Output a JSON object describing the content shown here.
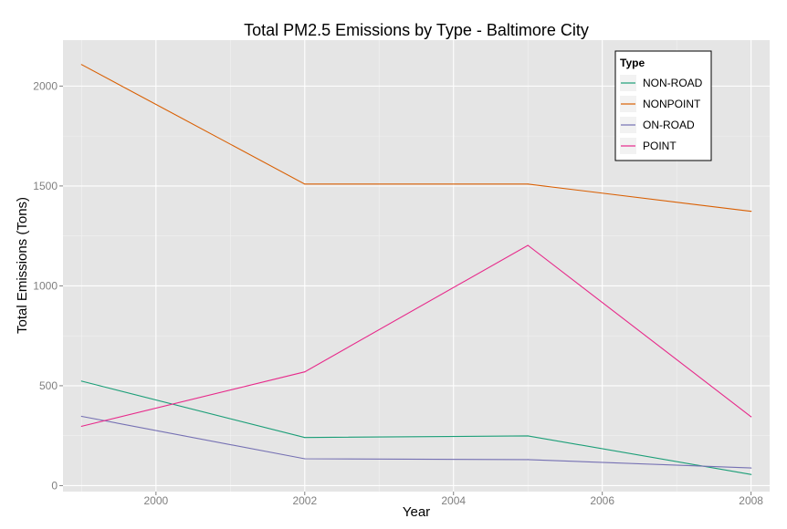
{
  "chart_data": {
    "type": "line",
    "title": "Total PM2.5 Emissions by Type - Baltimore City",
    "xlabel": "Year",
    "ylabel": "Total Emissions (Tons)",
    "xlim": [
      1998.75,
      2008.25
    ],
    "ylim": [
      -30,
      2230
    ],
    "x_ticks": [
      2000,
      2002,
      2004,
      2006,
      2008
    ],
    "y_ticks": [
      0,
      500,
      1000,
      1500,
      2000
    ],
    "x": [
      1999,
      2002,
      2005,
      2008
    ],
    "grid": true,
    "legend": {
      "title": "Type",
      "position": "top-right"
    },
    "series": [
      {
        "name": "NON-ROAD",
        "color": "#1b9e77",
        "values": [
          522.9,
          240.8,
          248.9,
          55.8
        ]
      },
      {
        "name": "NONPOINT",
        "color": "#d95f02",
        "values": [
          2107.6,
          1509.5,
          1509.5,
          1373.2
        ]
      },
      {
        "name": "ON-ROAD",
        "color": "#7570b3",
        "values": [
          346.8,
          134.3,
          130.4,
          88.3
        ]
      },
      {
        "name": "POINT",
        "color": "#e7298a",
        "values": [
          296.8,
          569.3,
          1202.5,
          345.0
        ]
      }
    ]
  }
}
